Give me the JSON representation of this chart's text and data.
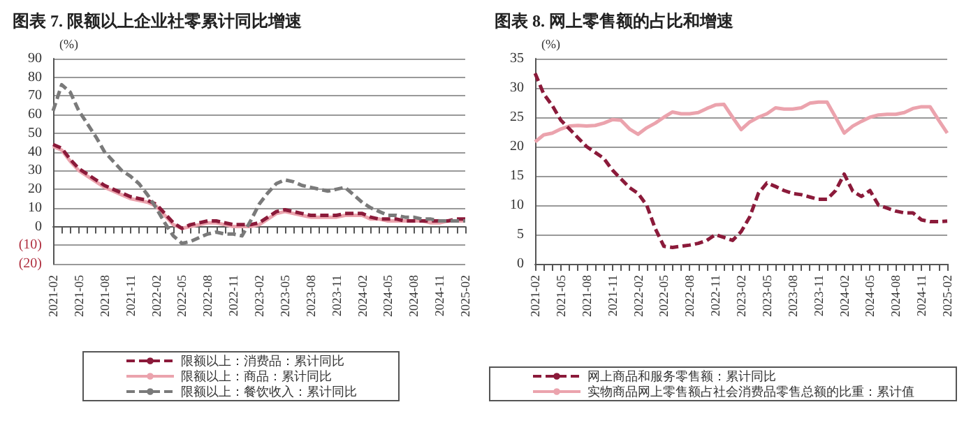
{
  "chart_data": [
    {
      "type": "line",
      "title": "图表 7. 限额以上企业社零累计同比增速",
      "ylabel": "(%)",
      "categories": [
        "2021-02",
        null,
        null,
        "2021-05",
        null,
        null,
        "2021-08",
        null,
        null,
        "2021-11",
        null,
        null,
        "2022-02",
        null,
        null,
        "2022-05",
        null,
        null,
        "2022-08",
        null,
        null,
        "2022-11",
        null,
        null,
        "2023-02",
        null,
        null,
        "2023-05",
        null,
        null,
        "2023-08",
        null,
        null,
        "2023-11",
        null,
        null,
        "2024-02",
        null,
        null,
        "2024-05",
        null,
        null,
        "2024-08",
        null,
        null,
        "2024-11",
        null,
        null,
        "2025-02"
      ],
      "series": [
        {
          "name": "限额以上：消费品：累计同比",
          "color": "#8b1a3a",
          "line_style": "dashed",
          "values": [
            44,
            42,
            36,
            31,
            28,
            25,
            22,
            20,
            18,
            16,
            15,
            14,
            12,
            7,
            2,
            -1,
            1,
            2,
            3,
            3,
            2,
            1,
            1,
            1,
            2,
            5,
            8,
            9,
            8,
            7,
            6,
            6,
            6,
            6,
            7,
            7,
            7,
            5,
            4,
            4,
            4,
            3,
            3,
            3,
            3,
            3,
            3,
            4,
            4
          ]
        },
        {
          "name": "限额以上：商品：累计同比",
          "color": "#eba3ad",
          "line_style": "solid",
          "values": [
            43,
            41,
            35,
            30,
            27,
            24,
            21,
            19,
            17,
            15,
            14,
            13,
            11,
            6,
            1,
            -1,
            0,
            1,
            2,
            2,
            1,
            0,
            0,
            0,
            1,
            4,
            7,
            8,
            7,
            6,
            5,
            5,
            5,
            5,
            6,
            6,
            6,
            4,
            4,
            3,
            3,
            3,
            3,
            3,
            2,
            2,
            3,
            3,
            3
          ]
        },
        {
          "name": "限额以上：餐饮收入：累计同比",
          "color": "#7a7a7a",
          "line_style": "dashed",
          "values": [
            62,
            76,
            72,
            62,
            55,
            48,
            40,
            35,
            30,
            27,
            23,
            17,
            10,
            2,
            -5,
            -9,
            -8,
            -6,
            -4,
            -3,
            -4,
            -4,
            -5,
            3,
            12,
            18,
            23,
            25,
            24,
            22,
            21,
            20,
            19,
            20,
            21,
            17,
            13,
            10,
            8,
            6,
            6,
            5,
            5,
            4,
            4,
            3,
            3,
            3,
            3
          ]
        }
      ],
      "ylim": [
        -20,
        90
      ],
      "yticks": [
        {
          "value": -20,
          "label": "(20)"
        },
        {
          "value": -10,
          "label": "(10)"
        },
        0,
        10,
        20,
        30,
        40,
        50,
        60,
        70,
        80,
        90
      ],
      "grid": "y",
      "legend": "bottom",
      "marker": "none"
    },
    {
      "type": "line",
      "title": "图表 8. 网上零售额的占比和增速",
      "ylabel": "(%)",
      "categories": [
        "2021-02",
        null,
        null,
        "2021-05",
        null,
        null,
        "2021-08",
        null,
        null,
        "2021-11",
        null,
        null,
        "2022-02",
        null,
        null,
        "2022-05",
        null,
        null,
        "2022-08",
        null,
        null,
        "2022-11",
        null,
        null,
        "2023-02",
        null,
        null,
        "2023-05",
        null,
        null,
        "2023-08",
        null,
        null,
        "2023-11",
        null,
        null,
        "2024-02",
        null,
        null,
        "2024-05",
        null,
        null,
        "2024-08",
        null,
        null,
        "2024-11",
        null,
        null,
        "2025-02"
      ],
      "series": [
        {
          "name": "网上商品和服务零售额：累计同比",
          "color": "#8b1a3a",
          "line_style": "dashed",
          "values": [
            32.5,
            29,
            27,
            24.5,
            23,
            21.5,
            20,
            19,
            18,
            16,
            14.5,
            13,
            12,
            10,
            6,
            3,
            2.8,
            3,
            3.2,
            3.5,
            4,
            5,
            4.5,
            4,
            5.5,
            8,
            12,
            13.8,
            13.2,
            12.5,
            12,
            11.8,
            11.4,
            11,
            11,
            12.5,
            15.3,
            12.4,
            11.5,
            12.5,
            10,
            9.5,
            9,
            8.7,
            8.7,
            7.5,
            7.2,
            7.2,
            7.3
          ]
        },
        {
          "name": "实物商品网上零售额占社会消费品零售总额的比重：累计值",
          "color": "#eba3ad",
          "line_style": "solid",
          "values": [
            20.8,
            22,
            22.3,
            23,
            23.5,
            23.6,
            23.5,
            23.6,
            24,
            24.6,
            24.5,
            23,
            22.1,
            23.2,
            24,
            25,
            25.9,
            25.6,
            25.6,
            25.8,
            26.5,
            27.1,
            27.2,
            25,
            22.9,
            24.2,
            25,
            25.6,
            26.6,
            26.4,
            26.4,
            26.6,
            27.4,
            27.6,
            27.6,
            25,
            22.3,
            23.5,
            24.3,
            25,
            25.4,
            25.5,
            25.5,
            25.8,
            26.5,
            26.8,
            26.8,
            24.5,
            22.3
          ]
        }
      ],
      "ylim": [
        0,
        35
      ],
      "yticks": [
        0,
        5,
        10,
        15,
        20,
        25,
        30,
        35
      ],
      "grid": "y",
      "legend": "bottom",
      "marker": "none"
    }
  ]
}
